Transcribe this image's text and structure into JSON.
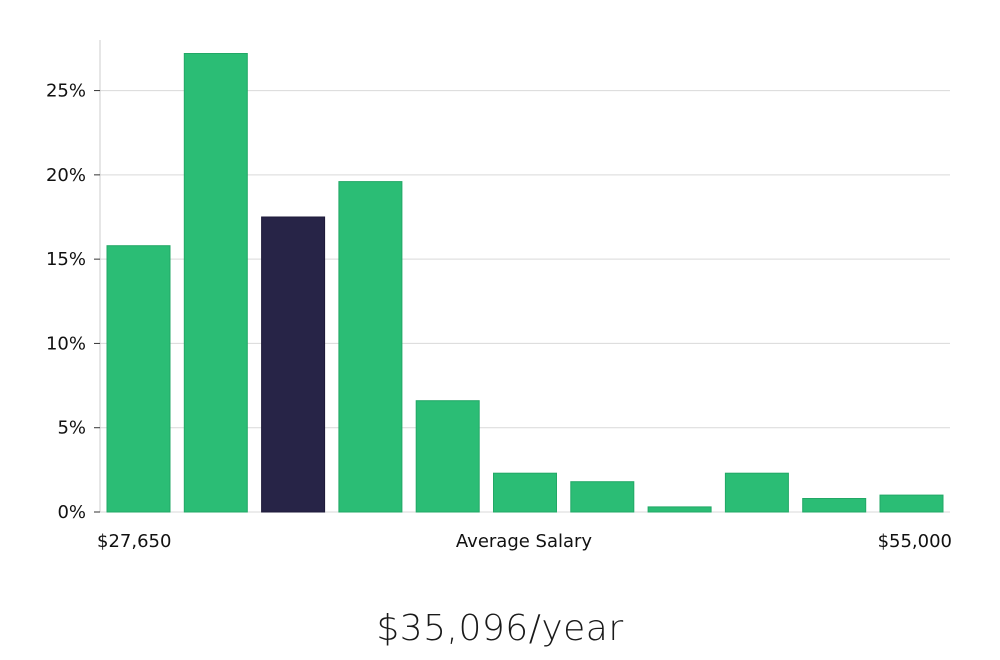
{
  "chart_data": {
    "type": "bar",
    "values": [
      15.8,
      27.2,
      17.5,
      19.6,
      6.6,
      2.3,
      1.8,
      0.3,
      2.3,
      0.8,
      1.0
    ],
    "highlight_index": 2,
    "ylim": [
      0,
      28
    ],
    "yticks": [
      0,
      5,
      10,
      15,
      20,
      25
    ],
    "ytick_labels": [
      "0%",
      "5%",
      "10%",
      "15%",
      "20%",
      "25%"
    ],
    "xlabel": "Average Salary",
    "xmin_label": "$27,650",
    "xmax_label": "$55,000",
    "grid": true,
    "colors": {
      "bar": "#2bbd75",
      "highlight": "#272447",
      "grid": "#d9d9d9",
      "axis": "#cccccc"
    }
  },
  "summary": "$35,096/year"
}
